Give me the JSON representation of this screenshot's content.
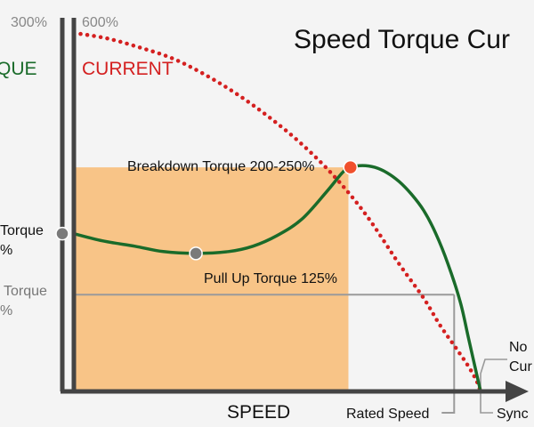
{
  "chart_data": {
    "type": "line",
    "title": "Speed Torque Cur",
    "xlabel": "SPEED",
    "left_axis_label": "QUE",
    "second_axis_label": "CURRENT",
    "left_axis_top_tick": "300%",
    "second_axis_top_tick": "600%",
    "x_ticks": [
      "Rated Speed",
      "Sync"
    ],
    "colors": {
      "torque": "#1a6b2a",
      "current": "#d42020",
      "region": "#f8c487",
      "point": "#7a7a7a",
      "breakdown_point": "#f0502d",
      "axis": "#444444"
    },
    "annotations": {
      "breakdown": "Breakdown Torque 200-250%",
      "pull_up": "Pull Up Torque 125%",
      "left_torque_1": "Torque",
      "left_pct_1": "%",
      "left_torque_2": "Torque",
      "left_pct_2": "%",
      "no_current_1": "No",
      "no_current_2": "Cur"
    },
    "series": [
      {
        "name": "CURRENT",
        "style": "dotted",
        "x": [
          0,
          0.08,
          0.16,
          0.24,
          0.32,
          0.4,
          0.48,
          0.56,
          0.64,
          0.72,
          0.8,
          0.86,
          0.9,
          0.94,
          0.97,
          0.99,
          1.0
        ],
        "y": [
          1.0,
          0.985,
          0.96,
          0.93,
          0.885,
          0.83,
          0.765,
          0.69,
          0.6,
          0.49,
          0.355,
          0.26,
          0.185,
          0.12,
          0.07,
          0.03,
          0.0
        ]
      },
      {
        "name": "TORQUE",
        "style": "solid",
        "x": [
          0,
          0.07,
          0.15,
          0.22,
          0.3,
          0.38,
          0.44,
          0.5,
          0.56,
          0.62,
          0.66,
          0.68,
          0.71,
          0.74,
          0.77,
          0.8,
          0.83,
          0.86,
          0.89,
          0.92,
          0.95,
          0.97,
          0.99,
          1.0
        ],
        "y": [
          0.44,
          0.42,
          0.405,
          0.39,
          0.385,
          0.39,
          0.405,
          0.435,
          0.48,
          0.555,
          0.61,
          0.625,
          0.63,
          0.625,
          0.61,
          0.585,
          0.55,
          0.505,
          0.44,
          0.355,
          0.25,
          0.15,
          0.05,
          0.0
        ]
      }
    ],
    "points": {
      "locked_rotor": {
        "x": 0,
        "y": 0.44
      },
      "pull_up": {
        "x": 0.3,
        "y": 0.385
      },
      "breakdown": {
        "x": 0.68,
        "y": 0.625
      }
    },
    "rated_torque_level": 0.27,
    "rated_speed_x": 0.935,
    "sync_x": 1.0,
    "region_x_end": 0.675,
    "region_y_top": 0.625,
    "xlim": [
      0,
      1
    ],
    "ylim": [
      0,
      1
    ]
  }
}
